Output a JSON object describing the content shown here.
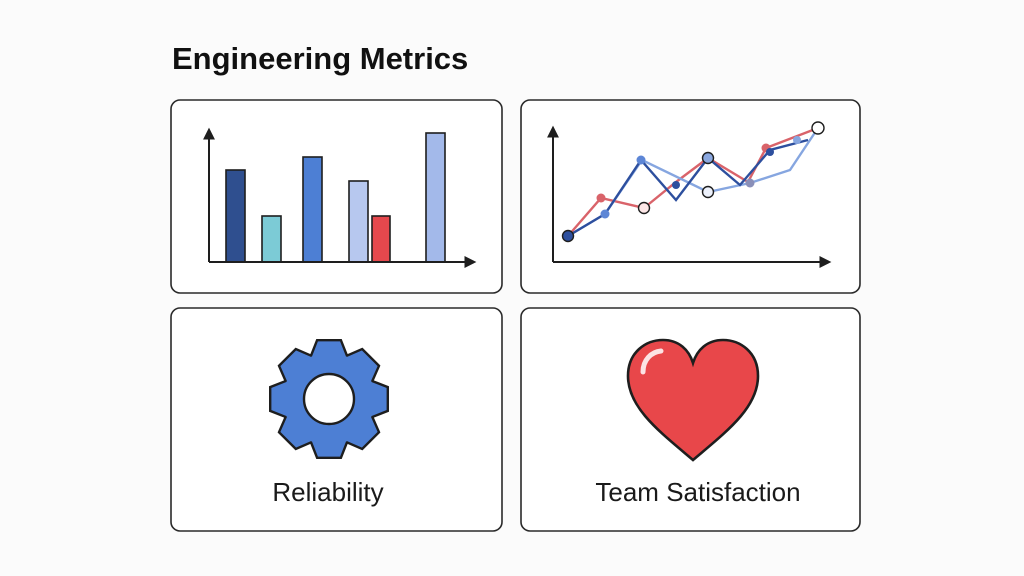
{
  "title": "Engineering Metrics",
  "cards": [
    {
      "label": "Reliability"
    },
    {
      "label": "Team Satisfaction"
    }
  ]
}
